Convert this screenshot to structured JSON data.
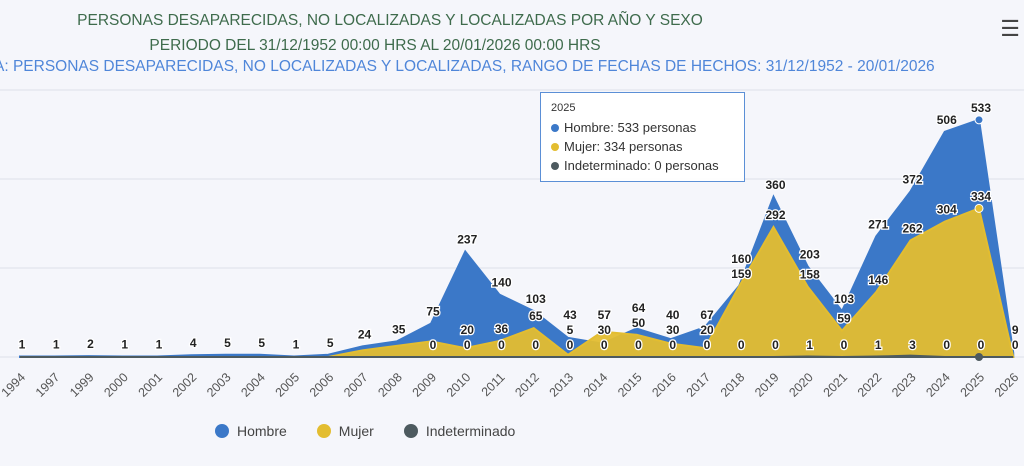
{
  "title": "PERSONAS DESAPARECIDAS, NO LOCALIZADAS Y LOCALIZADAS POR AÑO Y SEXO",
  "subtitle": "PERIODO DEL 31/12/1952 00:00 HRS AL 20/01/2026 00:00 HRS",
  "source": "A: PERSONAS DESAPARECIDAS, NO LOCALIZADAS Y LOCALIZADAS, RANGO DE FECHAS DE HECHOS: 31/12/1952 - 20/01/2026",
  "menu_icon": "hamburger-menu-icon",
  "tooltip": {
    "year": "2025",
    "lines": [
      "Hombre: 533 personas",
      "Mujer: 334 personas",
      "Indeterminado: 0 personas"
    ]
  },
  "chart_data": {
    "type": "area",
    "categories": [
      "1994",
      "1997",
      "1999",
      "2000",
      "2001",
      "2002",
      "2003",
      "2004",
      "2005",
      "2006",
      "2007",
      "2008",
      "2009",
      "2010",
      "2011",
      "2012",
      "2013",
      "2014",
      "2015",
      "2016",
      "2017",
      "2018",
      "2019",
      "2020",
      "2021",
      "2022",
      "2023",
      "2024",
      "2025",
      "2026"
    ],
    "ylim": [
      0,
      600
    ],
    "grid": true,
    "legend": "bottom",
    "series": [
      {
        "name": "Hombre",
        "color": "#3b78c8",
        "values": [
          1,
          1,
          2,
          1,
          1,
          4,
          5,
          5,
          1,
          5,
          24,
          35,
          75,
          237,
          140,
          103,
          43,
          30,
          64,
          40,
          67,
          160,
          360,
          203,
          103,
          271,
          372,
          506,
          533,
          9
        ]
      },
      {
        "name": "Mujer",
        "color": "#e3bd30",
        "values": [
          0,
          0,
          0,
          0,
          0,
          0,
          0,
          0,
          0,
          0,
          15,
          25,
          35,
          20,
          36,
          65,
          5,
          57,
          50,
          30,
          20,
          159,
          292,
          158,
          59,
          146,
          262,
          304,
          334,
          0
        ]
      },
      {
        "name": "Indeterminado",
        "color": "#4d5a5f",
        "values": [
          0,
          0,
          0,
          0,
          0,
          0,
          0,
          0,
          0,
          0,
          0,
          0,
          0,
          0,
          0,
          0,
          0,
          0,
          0,
          0,
          0,
          0,
          0,
          1,
          0,
          1,
          3,
          0,
          0,
          0
        ]
      }
    ]
  }
}
